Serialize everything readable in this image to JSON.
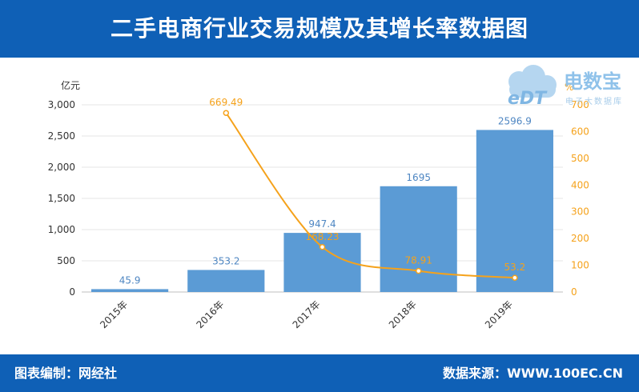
{
  "header": {
    "title": "二手电商行业交易规模及其增长率数据图"
  },
  "footer": {
    "left": "图表编制：网经社",
    "right": "数据来源：WWW.100EC.CN"
  },
  "logo": {
    "mark": "eDT",
    "name": "电数宝",
    "subtitle": "电子大数据库"
  },
  "colors": {
    "header_bg": "#0f60b6",
    "bar": "#5b9bd5",
    "line": "#f5a21b",
    "bar_label": "#4e86c2",
    "axis_text": "#333333"
  },
  "chart_data": {
    "type": "bar",
    "categories": [
      "2015年",
      "2016年",
      "2017年",
      "2018年",
      "2019年"
    ],
    "series": [
      {
        "values": [
          45.9,
          353.2,
          947.4,
          1695,
          2596.9
        ],
        "labels": [
          "45.9",
          "353.2",
          "947.4",
          "1695",
          "2596.9"
        ],
        "axis": "left",
        "type": "bar"
      },
      {
        "values": [
          null,
          669.49,
          168.23,
          78.91,
          53.2
        ],
        "labels": [
          "",
          "669.49",
          "168.23",
          "78.91",
          "53.2"
        ],
        "axis": "right",
        "type": "line"
      }
    ],
    "left_axis": {
      "unit": "亿元",
      "ylim": [
        0,
        3000
      ],
      "ticks": [
        "0",
        "500",
        "1,000",
        "1,500",
        "2,000",
        "2,500",
        "3,000"
      ]
    },
    "right_axis": {
      "unit": "%",
      "ylim": [
        0,
        700
      ],
      "ticks": [
        "0",
        "100",
        "200",
        "300",
        "400",
        "500",
        "600",
        "700"
      ]
    },
    "grid": true
  }
}
